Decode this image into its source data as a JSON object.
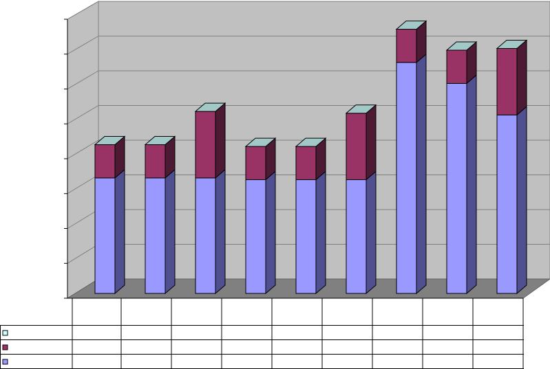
{
  "chart_data": {
    "type": "bar",
    "stacked": true,
    "three_d": true,
    "grid": true,
    "ylim": [
      0,
      8
    ],
    "legend_placement": "data-table-left",
    "categories": [
      "",
      "",
      "",
      "",
      "",
      "",
      "",
      "",
      ""
    ],
    "series": [
      {
        "color": "#9999ff",
        "side_color": "#505090",
        "top_color": "#a3c8c8",
        "values": [
          3.3,
          3.3,
          3.3,
          3.25,
          3.25,
          3.25,
          6.6,
          6.0,
          5.1
        ]
      },
      {
        "color": "#993366",
        "side_color": "#4d1a33",
        "top_color": "#a3c8c8",
        "values": [
          0.95,
          0.95,
          1.9,
          0.95,
          0.95,
          1.9,
          0.95,
          0.95,
          1.9
        ]
      },
      {
        "color": "#ccffff",
        "side_color": "#8cb3b3",
        "top_color": "#ccffff",
        "values": [
          0,
          0,
          0,
          0,
          0,
          0,
          0,
          0,
          0
        ]
      }
    ]
  }
}
